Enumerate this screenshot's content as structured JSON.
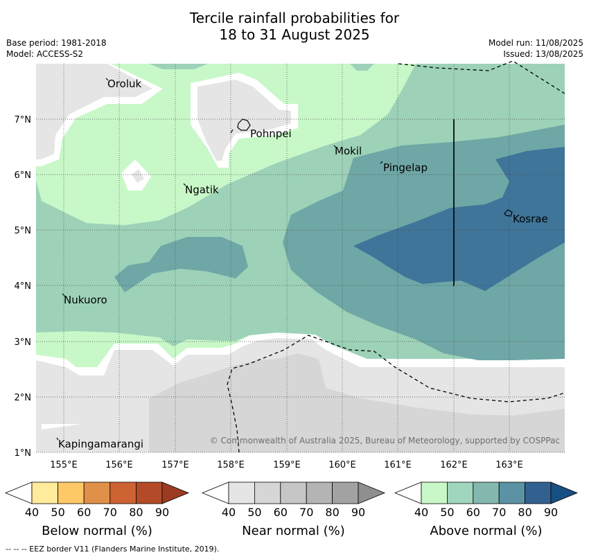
{
  "title": {
    "line1": "Tercile rainfall probabilities for",
    "line2": "18 to 31 August 2025"
  },
  "meta": {
    "base_period": "Base period: 1981-2018",
    "model": "Model: ACCESS-S2",
    "model_run": "Model run: 11/08/2025",
    "issued": "Issued: 13/08/2025"
  },
  "map": {
    "x_ticks": [
      "155°E",
      "156°E",
      "157°E",
      "158°E",
      "159°E",
      "160°E",
      "161°E",
      "162°E",
      "163°E"
    ],
    "y_ticks": [
      "1°N",
      "2°N",
      "3°N",
      "4°N",
      "5°N",
      "6°N",
      "7°N"
    ],
    "places": [
      {
        "name": "Oroluk"
      },
      {
        "name": "Pohnpei"
      },
      {
        "name": "Mokil"
      },
      {
        "name": "Pingelap"
      },
      {
        "name": "Ngatik"
      },
      {
        "name": "Kosrae"
      },
      {
        "name": "Nukuoro"
      },
      {
        "name": "Kapingamarangi"
      }
    ],
    "copyright": "© Commonwealth of Australia 2025, Bureau of Meteorology, supported by COSPPac"
  },
  "colorbars": [
    {
      "title": "Below normal (%)",
      "labels": [
        "40",
        "50",
        "60",
        "70",
        "80",
        "90"
      ],
      "colors": [
        "#ffffff",
        "#ffeb9c",
        "#fec866",
        "#e09048",
        "#cd6233",
        "#b34b28",
        "#9c3a22"
      ]
    },
    {
      "title": "Near normal (%)",
      "labels": [
        "40",
        "50",
        "60",
        "70",
        "80",
        "90"
      ],
      "colors": [
        "#ffffff",
        "#e5e5e5",
        "#d6d6d6",
        "#c6c6c6",
        "#b4b4b4",
        "#a2a2a2",
        "#8f8f8f"
      ]
    },
    {
      "title": "Above normal (%)",
      "labels": [
        "40",
        "50",
        "60",
        "70",
        "80",
        "90"
      ],
      "colors": [
        "#ffffff",
        "#c8f8c8",
        "#a0d6bd",
        "#84b8ae",
        "#5b92a4",
        "#33618f",
        "#174f82"
      ]
    }
  ],
  "footnote": "-- -- -- EEZ border V11 (Flanders Marine Institute, 2019).",
  "palette": {
    "white": "#ffffff",
    "near_50": "#e5e5e5",
    "near_60": "#d6d6d6",
    "above_50": "#c8f8c8",
    "above_60": "#9dd2b8",
    "above_70": "#6fa7a7",
    "above_80": "#3f7599"
  }
}
